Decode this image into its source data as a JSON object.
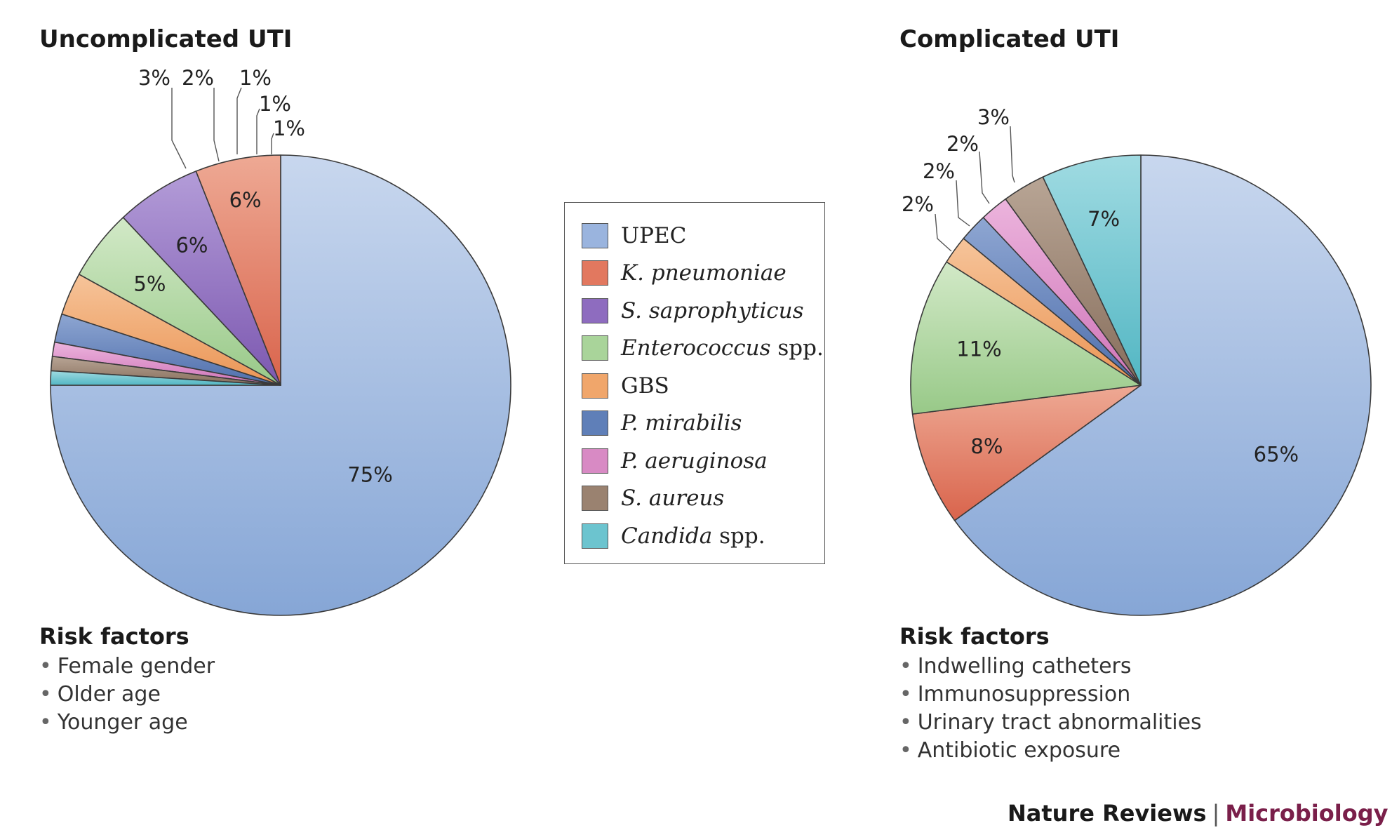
{
  "legend": [
    {
      "name": "UPEC",
      "italic_part": "",
      "plain_part": "UPEC",
      "color": "#9ab4de"
    },
    {
      "name": "K. pneumoniae",
      "italic_part": "K. pneumoniae",
      "plain_part": "",
      "color": "#e2785f"
    },
    {
      "name": "S. saprophyticus",
      "italic_part": "S. saprophyticus",
      "plain_part": "",
      "color": "#8e6cbf"
    },
    {
      "name": "Enterococcus spp.",
      "italic_part": "Enterococcus",
      "plain_part": " spp.",
      "color": "#a9d49a"
    },
    {
      "name": "GBS",
      "italic_part": "",
      "plain_part": "GBS",
      "color": "#f0a66b"
    },
    {
      "name": "P. mirabilis",
      "italic_part": "P. mirabilis",
      "plain_part": "",
      "color": "#5f7fb8"
    },
    {
      "name": "P. aeruginosa",
      "italic_part": "P. aeruginosa",
      "plain_part": "",
      "color": "#d88ac4"
    },
    {
      "name": "S. aureus",
      "italic_part": "S. aureus",
      "plain_part": "",
      "color": "#9a8270"
    },
    {
      "name": "Candida spp.",
      "italic_part": "Candida",
      "plain_part": " spp.",
      "color": "#6cc4cf"
    }
  ],
  "chart_data": [
    {
      "type": "pie",
      "title": "Uncomplicated UTI",
      "categories": [
        "UPEC",
        "K. pneumoniae",
        "S. saprophyticus",
        "Enterococcus spp.",
        "GBS",
        "P. mirabilis",
        "P. aeruginosa",
        "S. aureus",
        "Candida spp."
      ],
      "values": [
        75,
        6,
        6,
        5,
        3,
        2,
        1,
        1,
        1
      ],
      "labels": [
        "75%",
        "6%",
        "6%",
        "5%",
        "3%",
        "2%",
        "1%",
        "1%",
        "1%"
      ]
    },
    {
      "type": "pie",
      "title": "Complicated UTI",
      "categories": [
        "UPEC",
        "K. pneumoniae",
        "Enterococcus spp.",
        "GBS",
        "P. mirabilis",
        "P. aeruginosa",
        "S. aureus",
        "Candida spp."
      ],
      "values": [
        65,
        8,
        11,
        2,
        2,
        2,
        3,
        7
      ],
      "labels": [
        "65%",
        "8%",
        "11%",
        "2%",
        "2%",
        "2%",
        "3%",
        "7%"
      ]
    }
  ],
  "risk_left": {
    "title": "Risk factors",
    "items": [
      "Female gender",
      "Older age",
      "Younger age"
    ]
  },
  "risk_right": {
    "title": "Risk factors",
    "items": [
      "Indwelling catheters",
      "Immunosuppression",
      "Urinary tract abnormalities",
      "Antibiotic exposure"
    ]
  },
  "footer": {
    "journal": "Nature Reviews",
    "separator": "|",
    "section": "Microbiology"
  }
}
